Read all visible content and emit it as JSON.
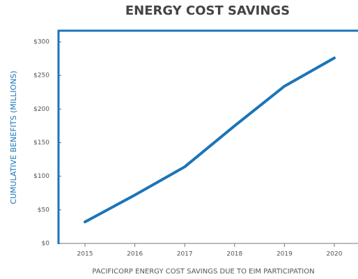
{
  "chart_data": {
    "type": "line",
    "title": "ENERGY COST SAVINGS",
    "y_label": "CUMULATIVE BENEFITS (MILLIONS)",
    "x_label": "PACIFICORP ENERGY COST SAVINGS DUE TO EIM PARTICIPATION",
    "categories": [
      "2015",
      "2016",
      "2017",
      "2018",
      "2019",
      "2020"
    ],
    "series": [
      {
        "name": "Energy cost savings",
        "color": "#1b75b9",
        "values": [
          32,
          72,
          114,
          175,
          234,
          276
        ]
      }
    ],
    "ylim": [
      0,
      300
    ],
    "yticks": [
      {
        "value": 0,
        "label": "$0"
      },
      {
        "value": 50,
        "label": "$50"
      },
      {
        "value": 100,
        "label": "$100"
      },
      {
        "value": 150,
        "label": "$150"
      },
      {
        "value": 200,
        "label": "$200"
      },
      {
        "value": 250,
        "label": "$250"
      },
      {
        "value": 300,
        "label": "$300"
      }
    ]
  }
}
